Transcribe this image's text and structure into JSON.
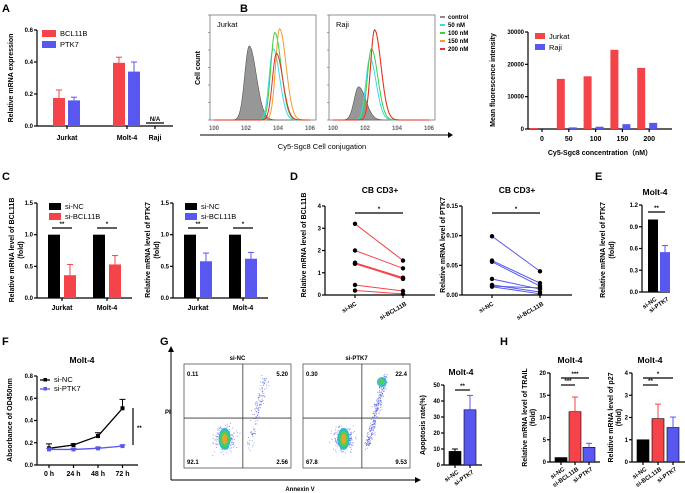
{
  "colors": {
    "red": "#f5434a",
    "blue": "#5858f0",
    "black": "#000000",
    "gray": "#8c8c8c",
    "cyan": "#3ad7f0",
    "green": "#3ecf3e",
    "orange": "#f59a32",
    "darkred": "#e0302a"
  },
  "panel_labels": [
    "A",
    "B",
    "C",
    "D",
    "E",
    "F",
    "G",
    "H"
  ],
  "chart_data": [
    {
      "id": "A",
      "type": "bar",
      "title": "",
      "ylabel": "Relative mRNA expression",
      "ylim": [
        0,
        0.6
      ],
      "yticks": [
        "0.0",
        "0.2",
        "0.4",
        "0.6"
      ],
      "categories": [
        "Jurkat",
        "Molt-4",
        "Raji"
      ],
      "series": [
        {
          "name": "BCL11B",
          "color": "red",
          "values": [
            0.175,
            0.395,
            null
          ],
          "errors": [
            0.05,
            0.035,
            null
          ]
        },
        {
          "name": "PTK7",
          "color": "blue",
          "values": [
            0.16,
            0.34,
            null
          ],
          "errors": [
            0.02,
            0.06,
            null
          ]
        }
      ],
      "annotations": [
        {
          "category": "Raji",
          "text": "N/A"
        }
      ],
      "legend": "top-left"
    },
    {
      "id": "B-hist",
      "type": "line",
      "title": "Flow cytometry histograms",
      "xlabel": "Cy5-Sgc8   Cell conjugation",
      "ylabel": "Cell count",
      "panels": [
        "Jurkat",
        "Raji"
      ],
      "xtick_labels": [
        "10^0",
        "10^2",
        "10^4",
        "10^6"
      ],
      "legend": {
        "items": [
          {
            "name": "control",
            "color": "gray"
          },
          {
            "name": "50 nM",
            "color": "cyan"
          },
          {
            "name": "100 nM",
            "color": "green"
          },
          {
            "name": "150 nM",
            "color": "orange"
          },
          {
            "name": "200 nM",
            "color": "darkred"
          }
        ],
        "placement": "right"
      },
      "peaks_log10": {
        "Jurkat": {
          "control": 2.2,
          "50 nM": 3.7,
          "100 nM": 3.8,
          "150 nM": 4.1,
          "200 nM": 3.9
        },
        "Raji": {
          "control": 1.6,
          "50 nM": 2.3,
          "100 nM": 2.4,
          "150 nM": 2.6,
          "200 nM": 2.6
        }
      },
      "peak_heights": {
        "Jurkat": {
          "control": 0.78,
          "50 nM": 0.75,
          "100 nM": 0.92,
          "150 nM": 0.96,
          "200 nM": 0.7
        },
        "Raji": {
          "control": 0.35,
          "50 nM": 0.65,
          "100 nM": 0.75,
          "150 nM": 0.95,
          "200 nM": 0.95
        }
      }
    },
    {
      "id": "B-bar",
      "type": "bar",
      "ylabel": "Mean fluorescence intensity",
      "xlabel": "Cy5-Sgc8 concentration（nM）",
      "ylim": [
        0,
        30000
      ],
      "yticks": [
        "0",
        "10000",
        "20000",
        "30000"
      ],
      "categories": [
        "0",
        "50",
        "100",
        "150",
        "200"
      ],
      "series": [
        {
          "name": "Jurkat",
          "color": "red",
          "values": [
            300,
            15500,
            16300,
            24500,
            18900
          ]
        },
        {
          "name": "Raji",
          "color": "blue",
          "values": [
            0,
            500,
            700,
            1500,
            1900
          ]
        }
      ],
      "legend": "top-left"
    },
    {
      "id": "C1",
      "type": "bar",
      "ylabel": "Relative mRNA level of BCL11B (fold)",
      "ylim": [
        0,
        1.5
      ],
      "yticks": [
        "0.0",
        "0.5",
        "1.0",
        "1.5"
      ],
      "categories": [
        "Jurkat",
        "Molt-4"
      ],
      "series": [
        {
          "name": "si-NC",
          "color": "black",
          "values": [
            1.0,
            1.0
          ],
          "errors": [
            0,
            0
          ]
        },
        {
          "name": "si-BCL11B",
          "color": "red",
          "values": [
            0.36,
            0.53
          ],
          "errors": [
            0.17,
            0.14
          ]
        }
      ],
      "significance": [
        "**",
        "*"
      ],
      "legend": "top-left"
    },
    {
      "id": "C2",
      "type": "bar",
      "ylabel": "Relative mRNA level of PTK7 (fold)",
      "ylim": [
        0,
        1.5
      ],
      "yticks": [
        "0.0",
        "0.5",
        "1.0",
        "1.5"
      ],
      "categories": [
        "Jurkat",
        "Molt-4"
      ],
      "series": [
        {
          "name": "si-NC",
          "color": "black",
          "values": [
            1.0,
            1.0
          ],
          "errors": [
            0,
            0
          ]
        },
        {
          "name": "si-BCL11B",
          "color": "blue",
          "values": [
            0.58,
            0.62
          ],
          "errors": [
            0.13,
            0.1
          ]
        }
      ],
      "significance": [
        "**",
        "*"
      ],
      "legend": "top-left"
    },
    {
      "id": "D1",
      "type": "scatter",
      "title": "CB CD3+",
      "ylabel": "Relative mRNA level of BCL11B",
      "ylim": [
        0,
        4
      ],
      "yticks": [
        "0",
        "1",
        "2",
        "3",
        "4"
      ],
      "categories": [
        "si-NC",
        "si-BCL11B"
      ],
      "color": "red",
      "pairs": [
        [
          3.2,
          1.55
        ],
        [
          2.0,
          1.2
        ],
        [
          1.45,
          0.78
        ],
        [
          1.42,
          0.72
        ],
        [
          0.45,
          0.18
        ],
        [
          0.2,
          0.05
        ],
        [
          1.4,
          0.75
        ]
      ],
      "significance": "*"
    },
    {
      "id": "D2",
      "type": "scatter",
      "title": "CB CD3+",
      "ylabel": "Relative mRNA level of PTK7",
      "ylim": [
        0,
        0.15
      ],
      "yticks": [
        "0.00",
        "0.05",
        "0.10",
        "0.15"
      ],
      "categories": [
        "si-NC",
        "si-BCL11B"
      ],
      "color": "blue",
      "pairs": [
        [
          0.099,
          0.04
        ],
        [
          0.058,
          0.02
        ],
        [
          0.056,
          0.015
        ],
        [
          0.027,
          0.01
        ],
        [
          0.017,
          0.005
        ],
        [
          0.015,
          0.012
        ],
        [
          0.014,
          0.002
        ]
      ],
      "significance": "*"
    },
    {
      "id": "E",
      "type": "bar",
      "title": "Molt-4",
      "ylabel": "Relative mRNA level of PTK7 (fold)",
      "ylim": [
        0,
        1.2
      ],
      "yticks": [
        "0.0",
        "0.3",
        "0.6",
        "0.9",
        "1.2"
      ],
      "categories": [
        "si-NC",
        "si-PTK7"
      ],
      "values": [
        1.0,
        0.55
      ],
      "errors": [
        0,
        0.09
      ],
      "colors": [
        "black",
        "blue"
      ],
      "significance": "**"
    },
    {
      "id": "F",
      "type": "line",
      "title": "Molt-4",
      "ylabel": "Absorbance of OD450nm",
      "ylim": [
        0,
        0.8
      ],
      "yticks": [
        "0.0",
        "0.2",
        "0.4",
        "0.6",
        "0.8"
      ],
      "x": [
        "0 h",
        "24 h",
        "48 h",
        "72 h"
      ],
      "series": [
        {
          "name": "si-NC",
          "color": "black",
          "values": [
            0.15,
            0.18,
            0.26,
            0.51
          ],
          "errors": [
            0.04,
            0.01,
            0.03,
            0.08
          ]
        },
        {
          "name": "si-PTK7",
          "color": "blue",
          "values": [
            0.14,
            0.14,
            0.15,
            0.17
          ],
          "errors": [
            0.01,
            0.01,
            0.01,
            0.01
          ]
        }
      ],
      "significance": "**",
      "legend": "top-left"
    },
    {
      "id": "G-flow",
      "type": "scatter",
      "xlabel": "Annexin V",
      "ylabel": "PI",
      "panels": [
        {
          "title": "si-NC",
          "quadrants": {
            "UL": "0.11",
            "UR": "5.20",
            "LL": "92.1",
            "LR": "2.56"
          }
        },
        {
          "title": "si-PTK7",
          "quadrants": {
            "UL": "0.30",
            "UR": "22.4",
            "LL": "67.8",
            "LR": "9.53"
          }
        }
      ]
    },
    {
      "id": "G-bar",
      "type": "bar",
      "title": "Molt-4",
      "ylabel": "Apoptosis rate(%)",
      "ylim": [
        0,
        50
      ],
      "yticks": [
        "0",
        "10",
        "20",
        "30",
        "40",
        "50"
      ],
      "categories": [
        "si-NC",
        "si-PTK7"
      ],
      "values": [
        8.5,
        34.5
      ],
      "errors": [
        1.5,
        9
      ],
      "colors": [
        "black",
        "blue"
      ],
      "significance": "**"
    },
    {
      "id": "H1",
      "type": "bar",
      "title": "Molt-4",
      "ylabel": "Relative mRNA level of TRAIL (fold)",
      "ylim": [
        0,
        20
      ],
      "yticks": [
        "0",
        "5",
        "10",
        "15",
        "20"
      ],
      "categories": [
        "si-NC",
        "si-BCL11B",
        "si-PTK7"
      ],
      "values": [
        1.0,
        11.3,
        3.3
      ],
      "errors": [
        0,
        3.3,
        0.9
      ],
      "colors": [
        "black",
        "red",
        "blue"
      ],
      "significance": [
        {
          "pair": [
            0,
            1
          ],
          "text": "***"
        },
        {
          "pair": [
            0,
            2
          ],
          "text": "***"
        }
      ]
    },
    {
      "id": "H2",
      "type": "bar",
      "title": "Molt-4",
      "ylabel": "Relative mRNA level of p27 (fold)",
      "ylim": [
        0,
        4
      ],
      "yticks": [
        "0",
        "1",
        "2",
        "3",
        "4"
      ],
      "categories": [
        "si-NC",
        "si-BCL11B",
        "si-PTK7"
      ],
      "values": [
        1.0,
        1.95,
        1.55
      ],
      "errors": [
        0,
        0.65,
        0.47
      ],
      "colors": [
        "black",
        "red",
        "blue"
      ],
      "significance": [
        {
          "pair": [
            0,
            1
          ],
          "text": "**"
        },
        {
          "pair": [
            0,
            2
          ],
          "text": "*"
        }
      ]
    }
  ]
}
